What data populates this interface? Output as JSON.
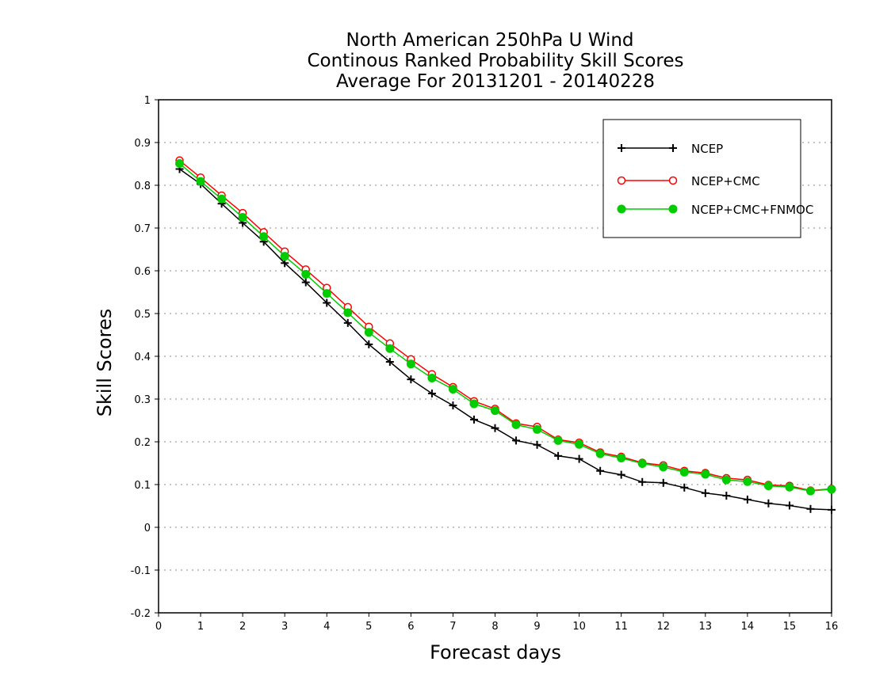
{
  "chart_data": {
    "type": "line",
    "title_lines": [
      "North American 250hPa U Wind",
      "Continous Ranked Probability Skill Scores",
      "Average For 20131201 - 20140228"
    ],
    "xlabel": "Forecast days",
    "ylabel": "Skill Scores",
    "xlim": [
      0,
      16
    ],
    "ylim": [
      -0.2,
      1
    ],
    "xticks": [
      "0",
      "1",
      "2",
      "3",
      "4",
      "5",
      "6",
      "7",
      "8",
      "9",
      "10",
      "11",
      "12",
      "13",
      "14",
      "15",
      "16"
    ],
    "yticks": [
      "-0.2",
      "-0.1",
      "0",
      "0.1",
      "0.2",
      "0.3",
      "0.4",
      "0.5",
      "0.6",
      "0.7",
      "0.8",
      "0.9",
      "1"
    ],
    "grid": "horizontal dotted",
    "legend_position": "top-right",
    "x": [
      0.5,
      1,
      1.5,
      2,
      2.5,
      3,
      3.5,
      4,
      4.5,
      5,
      5.5,
      6,
      6.5,
      7,
      7.5,
      8,
      8.5,
      9,
      9.5,
      10,
      10.5,
      11,
      11.5,
      12,
      12.5,
      13,
      13.5,
      14,
      14.5,
      15,
      15.5,
      16
    ],
    "series": [
      {
        "name": "NCEP",
        "color": "#000000",
        "marker": "plus",
        "values": [
          0.838,
          0.803,
          0.757,
          0.712,
          0.668,
          0.618,
          0.573,
          0.525,
          0.478,
          0.428,
          0.387,
          0.346,
          0.313,
          0.285,
          0.252,
          0.232,
          0.203,
          0.193,
          0.167,
          0.16,
          0.132,
          0.123,
          0.106,
          0.104,
          0.093,
          0.08,
          0.074,
          0.065,
          0.056,
          0.051,
          0.043,
          0.041
        ]
      },
      {
        "name": "NCEP+CMC",
        "color": "#ff0000",
        "marker": "open-circle",
        "values": [
          0.858,
          0.818,
          0.776,
          0.735,
          0.69,
          0.645,
          0.603,
          0.56,
          0.515,
          0.469,
          0.43,
          0.393,
          0.358,
          0.328,
          0.295,
          0.277,
          0.243,
          0.235,
          0.205,
          0.198,
          0.175,
          0.165,
          0.151,
          0.145,
          0.132,
          0.127,
          0.115,
          0.111,
          0.099,
          0.097,
          0.086,
          0.09
        ]
      },
      {
        "name": "NCEP+CMC+FNMOC",
        "color": "#00cc00",
        "marker": "filled-circle",
        "values": [
          0.851,
          0.809,
          0.768,
          0.725,
          0.68,
          0.634,
          0.592,
          0.547,
          0.502,
          0.456,
          0.418,
          0.382,
          0.349,
          0.323,
          0.289,
          0.273,
          0.24,
          0.229,
          0.203,
          0.194,
          0.172,
          0.162,
          0.149,
          0.141,
          0.129,
          0.124,
          0.111,
          0.107,
          0.097,
          0.094,
          0.085,
          0.089
        ]
      }
    ]
  }
}
